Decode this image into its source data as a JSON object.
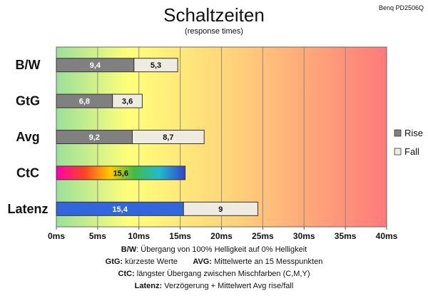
{
  "chart_data": {
    "type": "bar",
    "stacked": true,
    "orientation": "horizontal",
    "title": "Schaltzeiten",
    "subtitle": "(response times)",
    "monitor": "Benq PD2506Q",
    "categories": [
      "B/W",
      "GtG",
      "Avg",
      "CtC",
      "Latenz"
    ],
    "series": [
      {
        "name": "Rise",
        "color": "#808080",
        "values": [
          9.4,
          6.8,
          9.2,
          null,
          null
        ],
        "labels": [
          "9,4",
          "6,8",
          "9,2",
          "",
          ""
        ]
      },
      {
        "name": "Fall",
        "color": "#eeece1",
        "values": [
          5.3,
          3.6,
          8.7,
          null,
          null
        ],
        "labels": [
          "5,3",
          "3,6",
          "8,7",
          "",
          ""
        ]
      }
    ],
    "special_bars": [
      {
        "category": "CtC",
        "segments": [
          {
            "value": 15.6,
            "label": "15,6",
            "fill": "rainbow"
          }
        ]
      },
      {
        "category": "Latenz",
        "segments": [
          {
            "value": 15.4,
            "label": "15,4",
            "fill": "#3366dd"
          },
          {
            "value": 9,
            "label": "9",
            "fill": "#eeece1"
          }
        ]
      }
    ],
    "xlim": [
      0,
      40
    ],
    "xticks": [
      0,
      5,
      10,
      15,
      20,
      25,
      30,
      35,
      40
    ],
    "xtick_labels": [
      "0ms",
      "5ms",
      "10ms",
      "15ms",
      "20ms",
      "25ms",
      "30ms",
      "35ms",
      "40ms"
    ],
    "legend": [
      "Rise",
      "Fall"
    ],
    "legend_position": "right",
    "grid": true,
    "background": "gradient green-yellow-orange-red"
  },
  "footnotes": {
    "line1_key": "B/W",
    "line1_text": ":  Übergang von 100% Helligkeit auf 0% Helligkeit",
    "line2a_key": "GtG:",
    "line2a_text": " kürzeste  Werte",
    "line2b_key": "AVG:",
    "line2b_text": " Mittelwerte  an 15 Messpunkten",
    "line3_key": "CtC:",
    "line3_text": " längster Übergang  zwischen Mischfarben (C,M,Y)",
    "line4_key": "Latenz:",
    "line4_text": " Verzögerung  + Mittelwert Avg rise/fall"
  }
}
